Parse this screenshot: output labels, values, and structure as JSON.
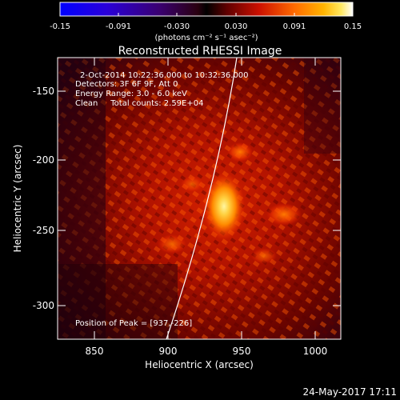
{
  "colorbar": {
    "ticks": [
      "-0.15",
      "-0.091",
      "-0.030",
      "0.030",
      "0.091",
      "0.15"
    ],
    "unit_label": "(photons cm⁻² s⁻¹ asec⁻²)"
  },
  "title": "Reconstructed RHESSI Image",
  "info_lines": [
    "2-Oct-2014 10:22:36.000 to 10:32:36.000",
    "Detectors: 3F 6F 9F, Att 0",
    "Energy Range: 3.0 - 6.0 keV",
    "Clean     Total counts: 2.59E+04"
  ],
  "peak_text": "Position of Peak = [937,-226]",
  "x_axis": {
    "label": "Heliocentric X (arcsec)",
    "ticks": [
      "850",
      "900",
      "950",
      "1000"
    ]
  },
  "y_axis": {
    "label": "Heliocentric Y (arcsec)",
    "ticks": [
      "-150",
      "-200",
      "-250",
      "-300"
    ]
  },
  "timestamp": "24-May-2017 17:11",
  "colors": {
    "background": "#000000",
    "text": "#ffffff",
    "limb": "#ffffff"
  }
}
